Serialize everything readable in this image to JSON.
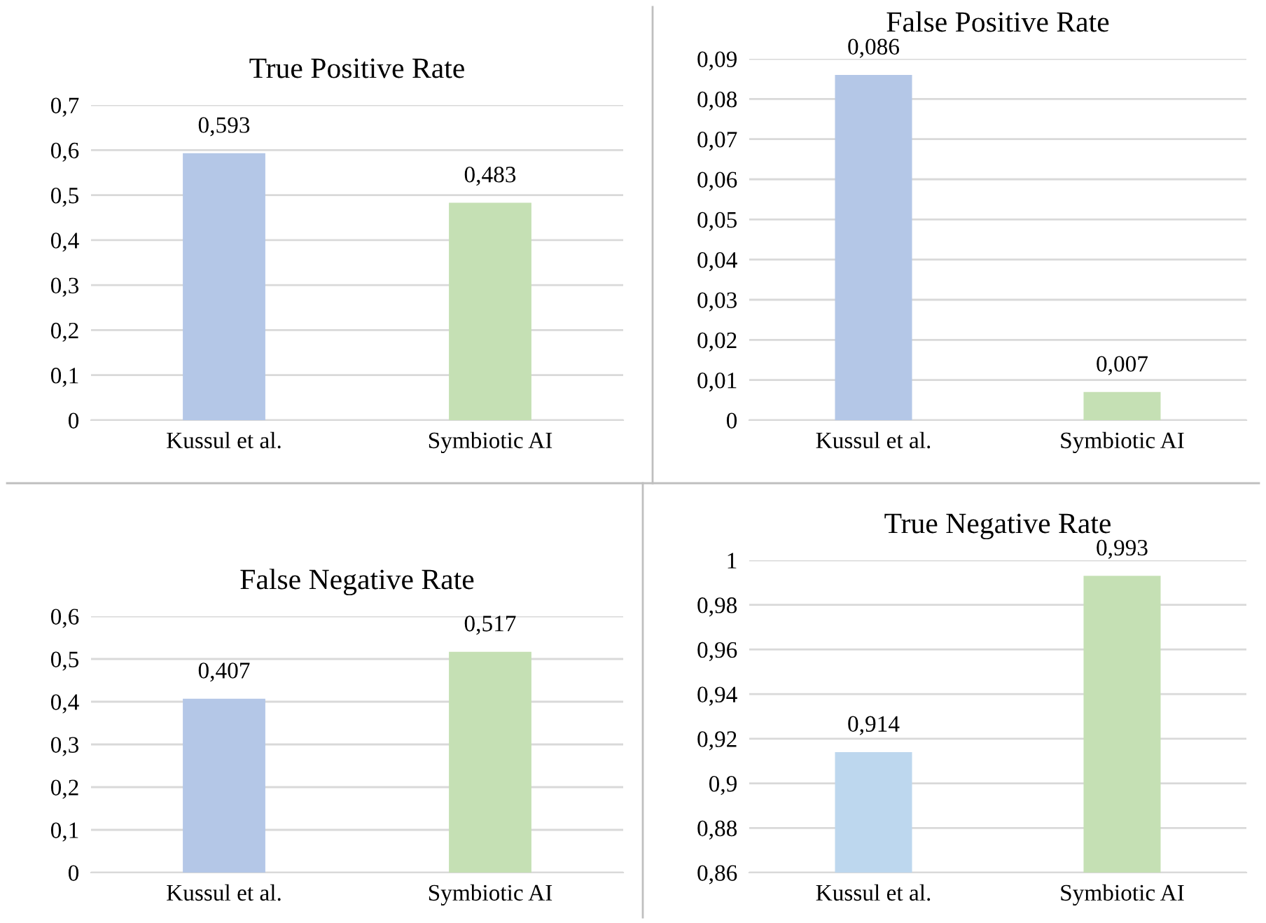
{
  "chart_data": [
    {
      "type": "bar",
      "title": "True Positive Rate",
      "categories": [
        "Kussul et al.",
        "Symbiotic AI"
      ],
      "values": [
        0.593,
        0.483
      ],
      "colors": [
        "#b4c7e7",
        "#c5e0b4"
      ],
      "value_labels": [
        "0,593",
        "0,483"
      ],
      "ylim": [
        0,
        0.7
      ],
      "yticks": [
        {
          "value": 0,
          "label": "0"
        },
        {
          "value": 0.1,
          "label": "0,1"
        },
        {
          "value": 0.2,
          "label": "0,2"
        },
        {
          "value": 0.3,
          "label": "0,3"
        },
        {
          "value": 0.4,
          "label": "0,4"
        },
        {
          "value": 0.5,
          "label": "0,5"
        },
        {
          "value": 0.6,
          "label": "0,6"
        },
        {
          "value": 0.7,
          "label": "0,7"
        }
      ],
      "grid": "y",
      "legend": false
    },
    {
      "type": "bar",
      "title": "False Positive Rate",
      "categories": [
        "Kussul et al.",
        "Symbiotic AI"
      ],
      "values": [
        0.086,
        0.007
      ],
      "colors": [
        "#b4c7e7",
        "#c5e0b4"
      ],
      "value_labels": [
        "0,086",
        "0,007"
      ],
      "ylim": [
        0,
        0.09
      ],
      "yticks": [
        {
          "value": 0,
          "label": "0"
        },
        {
          "value": 0.01,
          "label": "0,01"
        },
        {
          "value": 0.02,
          "label": "0,02"
        },
        {
          "value": 0.03,
          "label": "0,03"
        },
        {
          "value": 0.04,
          "label": "0,04"
        },
        {
          "value": 0.05,
          "label": "0,05"
        },
        {
          "value": 0.06,
          "label": "0,06"
        },
        {
          "value": 0.07,
          "label": "0,07"
        },
        {
          "value": 0.08,
          "label": "0,08"
        },
        {
          "value": 0.09,
          "label": "0,09"
        }
      ],
      "grid": "y",
      "legend": false
    },
    {
      "type": "bar",
      "title": "False Negative Rate",
      "categories": [
        "Kussul et al.",
        "Symbiotic AI"
      ],
      "values": [
        0.407,
        0.517
      ],
      "colors": [
        "#b4c7e7",
        "#c5e0b4"
      ],
      "value_labels": [
        "0,407",
        "0,517"
      ],
      "ylim": [
        0,
        0.6
      ],
      "yticks": [
        {
          "value": 0,
          "label": "0"
        },
        {
          "value": 0.1,
          "label": "0,1"
        },
        {
          "value": 0.2,
          "label": "0,2"
        },
        {
          "value": 0.3,
          "label": "0,3"
        },
        {
          "value": 0.4,
          "label": "0,4"
        },
        {
          "value": 0.5,
          "label": "0,5"
        },
        {
          "value": 0.6,
          "label": "0,6"
        }
      ],
      "grid": "y",
      "legend": false
    },
    {
      "type": "bar",
      "title": "True Negative Rate",
      "categories": [
        "Kussul et al.",
        "Symbiotic AI"
      ],
      "values": [
        0.914,
        0.993
      ],
      "colors": [
        "#bdd7ee",
        "#c5e0b4"
      ],
      "value_labels": [
        "0,914",
        "0,993"
      ],
      "ylim": [
        0.86,
        1
      ],
      "yticks": [
        {
          "value": 0.86,
          "label": "0,86"
        },
        {
          "value": 0.88,
          "label": "0,88"
        },
        {
          "value": 0.9,
          "label": "0,9"
        },
        {
          "value": 0.92,
          "label": "0,92"
        },
        {
          "value": 0.94,
          "label": "0,94"
        },
        {
          "value": 0.96,
          "label": "0,96"
        },
        {
          "value": 0.98,
          "label": "0,98"
        },
        {
          "value": 1,
          "label": "1"
        }
      ],
      "grid": "y",
      "legend": false
    }
  ]
}
